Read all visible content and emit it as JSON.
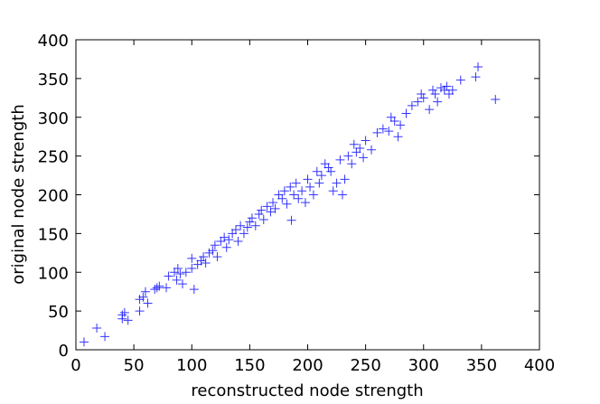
{
  "chart_data": {
    "type": "scatter",
    "xlabel": "reconstructed node strength",
    "ylabel": "original node strength",
    "xlim": [
      0,
      400
    ],
    "ylim": [
      0,
      400
    ],
    "xticks": [
      0,
      50,
      100,
      150,
      200,
      250,
      300,
      350,
      400
    ],
    "yticks": [
      0,
      50,
      100,
      150,
      200,
      250,
      300,
      350,
      400
    ],
    "color": "#0000ff",
    "x": [
      7,
      18,
      25,
      40,
      40,
      42,
      45,
      55,
      55,
      58,
      60,
      62,
      68,
      70,
      72,
      78,
      80,
      85,
      87,
      88,
      90,
      92,
      95,
      100,
      100,
      102,
      105,
      108,
      110,
      112,
      115,
      118,
      120,
      122,
      125,
      128,
      130,
      132,
      135,
      138,
      140,
      142,
      145,
      148,
      150,
      152,
      155,
      158,
      160,
      162,
      165,
      168,
      170,
      172,
      186,
      175,
      178,
      180,
      182,
      185,
      188,
      190,
      192,
      195,
      198,
      200,
      202,
      205,
      208,
      210,
      212,
      215,
      218,
      220,
      222,
      225,
      228,
      230,
      232,
      235,
      238,
      240,
      242,
      245,
      248,
      250,
      255,
      260,
      265,
      270,
      272,
      275,
      278,
      280,
      285,
      290,
      295,
      298,
      300,
      305,
      308,
      310,
      312,
      315,
      318,
      320,
      322,
      325,
      332,
      345,
      347,
      362
    ],
    "y": [
      10,
      28,
      17,
      40,
      45,
      48,
      38,
      50,
      65,
      68,
      75,
      60,
      78,
      80,
      82,
      80,
      95,
      100,
      90,
      105,
      98,
      85,
      100,
      105,
      118,
      78,
      110,
      115,
      120,
      112,
      125,
      128,
      135,
      120,
      140,
      145,
      132,
      142,
      150,
      155,
      140,
      160,
      150,
      158,
      165,
      170,
      160,
      175,
      180,
      168,
      185,
      178,
      190,
      182,
      167,
      200,
      195,
      205,
      188,
      210,
      200,
      215,
      195,
      205,
      190,
      220,
      210,
      200,
      230,
      215,
      225,
      240,
      235,
      230,
      205,
      215,
      245,
      200,
      220,
      250,
      240,
      265,
      255,
      260,
      248,
      270,
      258,
      280,
      285,
      282,
      300,
      295,
      275,
      290,
      305,
      315,
      320,
      330,
      325,
      310,
      335,
      330,
      320,
      338,
      335,
      340,
      330,
      335,
      348,
      352,
      365,
      323
    ]
  }
}
